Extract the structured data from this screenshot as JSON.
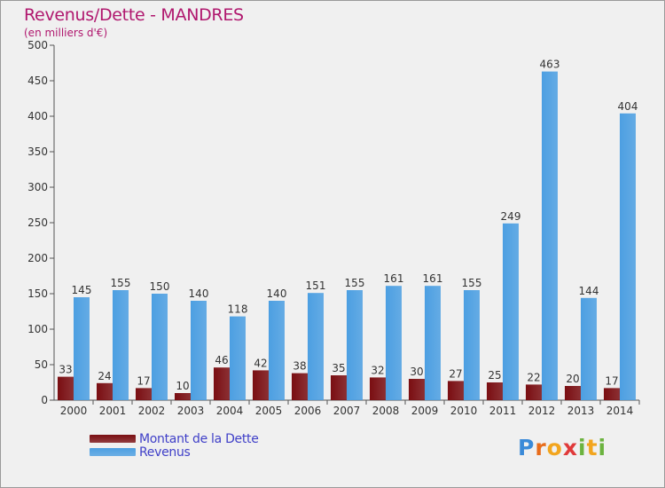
{
  "title": "Revenus/Dette - MANDRES",
  "subtitle": "(en milliers d'€)",
  "chart_data": {
    "type": "bar",
    "categories": [
      "2000",
      "2001",
      "2002",
      "2003",
      "2004",
      "2005",
      "2006",
      "2007",
      "2008",
      "2009",
      "2010",
      "2011",
      "2012",
      "2013",
      "2014"
    ],
    "series": [
      {
        "name": "Montant de la Dette",
        "color": "#7a0e12",
        "values": [
          33,
          24,
          17,
          10,
          46,
          42,
          38,
          35,
          32,
          30,
          27,
          25,
          22,
          20,
          17
        ]
      },
      {
        "name": "Revenus",
        "color": "#4c9fe2",
        "values": [
          145,
          155,
          150,
          140,
          118,
          140,
          151,
          155,
          161,
          161,
          155,
          249,
          463,
          144,
          404
        ]
      }
    ],
    "ylim": [
      0,
      500
    ],
    "yticks": [
      0,
      50,
      100,
      150,
      200,
      250,
      300,
      350,
      400,
      450,
      500
    ],
    "grid": false,
    "legend_position": "bottom-left"
  },
  "legend": {
    "items": [
      {
        "label": "Montant de la Dette",
        "color": "#7a0e12"
      },
      {
        "label": "Revenus",
        "color": "#4c9fe2"
      }
    ]
  },
  "logo": {
    "letters": [
      "P",
      "r",
      "o",
      "x",
      "i",
      "t",
      "i"
    ],
    "colors": [
      "#3a8ad8",
      "#e86c1a",
      "#f2a51e",
      "#e03a3a",
      "#6cb33f",
      "#f2a51e",
      "#6cb33f"
    ]
  }
}
